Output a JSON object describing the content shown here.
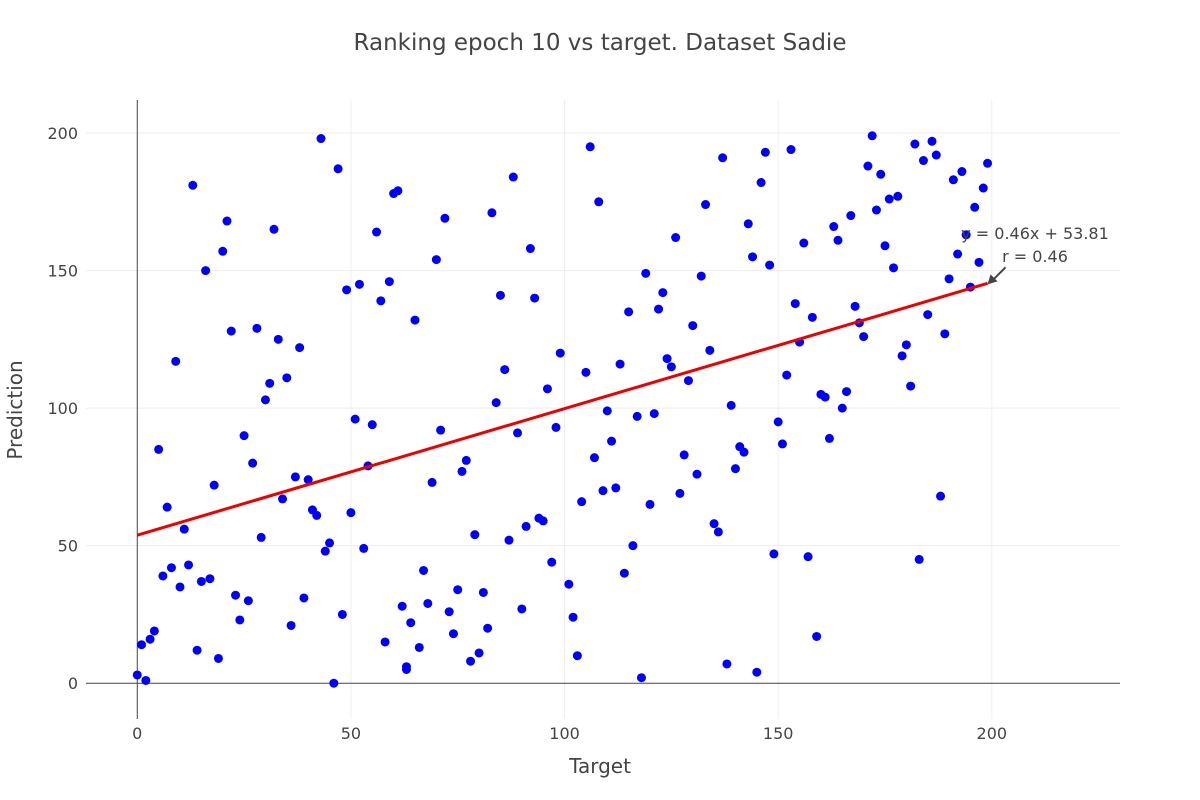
{
  "chart_data": {
    "type": "scatter",
    "title": "Ranking epoch 10 vs target. Dataset Sadie",
    "xlabel": "Target",
    "ylabel": "Prediction",
    "xlim": [
      -12,
      230
    ],
    "ylim": [
      -13,
      212
    ],
    "xticks": [
      0,
      50,
      100,
      150,
      200
    ],
    "yticks": [
      0,
      50,
      100,
      150,
      200
    ],
    "grid": true,
    "colors": {
      "points": "#0000ff",
      "fit_line": "#ee0000",
      "text": "#444444",
      "grid": "#eeeeee"
    },
    "fit": {
      "slope": 0.46,
      "intercept": 53.81,
      "x_range": [
        0,
        199
      ]
    },
    "annotation": {
      "line1": "y = 0.46x + 53.81",
      "line2": "r = 0.46",
      "points_to": [
        199,
        145
      ]
    },
    "series": [
      {
        "x": [
          0,
          1,
          2,
          3,
          4,
          5,
          6,
          7,
          8,
          9,
          10,
          11,
          12,
          13,
          14,
          15,
          16,
          17,
          18,
          19,
          20,
          21,
          22,
          23,
          24,
          25,
          26,
          27,
          28,
          29,
          30,
          31,
          32,
          33,
          34,
          35,
          36,
          37,
          38,
          39,
          40,
          41,
          42,
          43,
          44,
          45,
          46,
          47,
          48,
          49,
          50,
          51,
          52,
          53,
          54,
          55,
          56,
          57,
          58,
          59,
          60,
          61,
          62,
          63,
          64,
          65,
          67,
          68,
          69,
          70,
          71,
          72,
          73,
          74,
          75,
          76,
          77,
          78,
          79,
          80,
          81,
          82,
          83,
          84,
          85,
          86,
          87,
          88,
          89,
          90,
          91,
          92,
          93,
          94,
          95,
          96,
          97,
          98,
          99,
          101,
          102,
          103,
          104,
          105,
          106,
          107,
          108,
          109,
          110,
          111,
          112,
          113,
          114,
          115,
          116,
          117,
          118,
          119,
          120,
          121,
          122,
          123,
          124,
          125,
          126,
          127,
          128,
          129,
          130,
          131,
          132,
          133,
          134,
          135,
          136,
          137,
          138,
          139,
          140,
          141,
          142,
          143,
          144,
          145,
          146,
          147,
          148,
          149,
          150,
          151,
          152,
          153,
          154,
          155,
          156,
          157,
          158,
          159,
          160,
          161,
          162,
          163,
          164,
          165,
          166,
          167,
          168,
          169,
          170,
          171,
          172,
          173,
          174,
          175,
          176,
          177,
          178,
          179,
          180,
          181,
          182,
          183,
          184,
          185,
          186,
          187,
          188,
          189,
          190,
          191,
          192,
          193,
          194,
          195,
          196,
          197,
          198,
          199,
          63,
          66
        ],
        "y": [
          3,
          14,
          1,
          16,
          19,
          85,
          39,
          64,
          42,
          117,
          35,
          56,
          43,
          181,
          12,
          37,
          150,
          38,
          72,
          9,
          157,
          168,
          128,
          32,
          23,
          90,
          30,
          80,
          129,
          53,
          103,
          109,
          165,
          125,
          67,
          111,
          21,
          75,
          122,
          31,
          74,
          63,
          61,
          198,
          48,
          51,
          0,
          187,
          25,
          143,
          62,
          96,
          145,
          49,
          79,
          94,
          164,
          139,
          15,
          146,
          178,
          179,
          28,
          6,
          22,
          132,
          41,
          29,
          73,
          154,
          92,
          169,
          26,
          18,
          34,
          77,
          81,
          8,
          54,
          11,
          33,
          20,
          171,
          102,
          141,
          114,
          52,
          184,
          91,
          27,
          57,
          158,
          140,
          60,
          59,
          107,
          44,
          93,
          120,
          36,
          24,
          10,
          66,
          113,
          195,
          82,
          175,
          70,
          99,
          88,
          71,
          116,
          40,
          135,
          50,
          97,
          2,
          149,
          65,
          98,
          136,
          142,
          118,
          115,
          162,
          69,
          83,
          110,
          130,
          76,
          148,
          174,
          121,
          58,
          55,
          191,
          7,
          101,
          78,
          86,
          84,
          167,
          155,
          4,
          182,
          193,
          152,
          47,
          95,
          87,
          112,
          194,
          138,
          124,
          160,
          46,
          133,
          17,
          105,
          104,
          89,
          166,
          161,
          100,
          106,
          170,
          137,
          131,
          126,
          188,
          199,
          172,
          185,
          159,
          176,
          151,
          177,
          119,
          123,
          108,
          196,
          45,
          190,
          134,
          197,
          192,
          68,
          127,
          147,
          183,
          156,
          186,
          163,
          144,
          173,
          153,
          180,
          189,
          5,
          13
        ]
      }
    ]
  }
}
